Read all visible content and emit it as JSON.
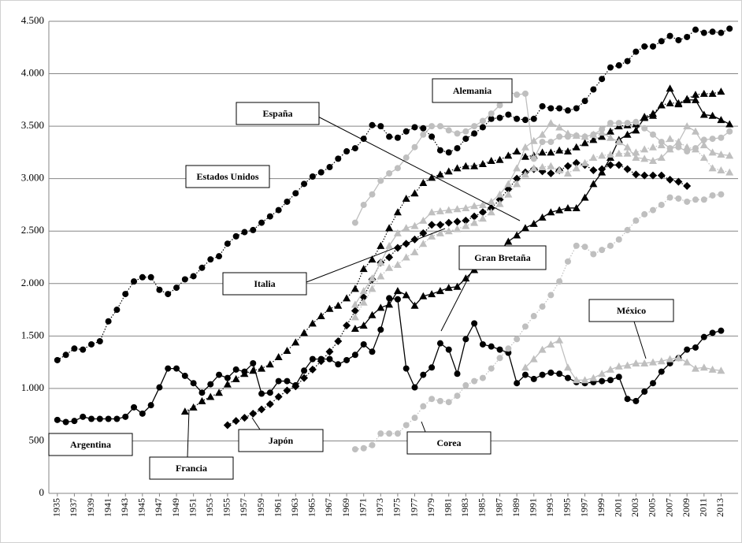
{
  "chart_data": {
    "type": "line",
    "x": [
      1935,
      1936,
      1937,
      1938,
      1939,
      1940,
      1941,
      1942,
      1943,
      1944,
      1945,
      1946,
      1947,
      1948,
      1949,
      1950,
      1951,
      1952,
      1953,
      1954,
      1955,
      1956,
      1957,
      1958,
      1959,
      1960,
      1961,
      1962,
      1963,
      1964,
      1965,
      1966,
      1967,
      1968,
      1969,
      1970,
      1971,
      1972,
      1973,
      1974,
      1975,
      1976,
      1977,
      1978,
      1979,
      1980,
      1981,
      1982,
      1983,
      1984,
      1985,
      1986,
      1987,
      1988,
      1989,
      1990,
      1991,
      1992,
      1993,
      1994,
      1995,
      1996,
      1997,
      1998,
      1999,
      2000,
      2001,
      2002,
      2003,
      2004,
      2005,
      2006,
      2007,
      2008,
      2009,
      2010,
      2011,
      2012,
      2013,
      2014
    ],
    "xlim": [
      1934,
      2015
    ],
    "xticks": [
      1935,
      1937,
      1939,
      1941,
      1943,
      1945,
      1947,
      1949,
      1951,
      1953,
      1955,
      1957,
      1959,
      1961,
      1963,
      1965,
      1967,
      1969,
      1971,
      1973,
      1975,
      1977,
      1979,
      1981,
      1983,
      1985,
      1987,
      1989,
      1991,
      1993,
      1995,
      1997,
      1999,
      2001,
      2003,
      2005,
      2007,
      2009,
      2011,
      2013
    ],
    "ylim": [
      0,
      4500
    ],
    "yticks": [
      0,
      500,
      {
        "value": 1000,
        "label": "1.000"
      },
      {
        "value": 1500,
        "label": "1.500"
      },
      {
        "value": 2000,
        "label": "2.000"
      },
      {
        "value": 2500,
        "label": "2.500"
      },
      {
        "value": 3000,
        "label": "3.000"
      },
      {
        "value": 3500,
        "label": "3.500"
      },
      {
        "value": 4000,
        "label": "4.000"
      },
      {
        "value": 4500,
        "label": "4.500"
      }
    ],
    "grid": true,
    "series": [
      {
        "name": "Estados Unidos",
        "color": "#000000",
        "marker": "circle",
        "line": "dotted",
        "values": [
          1270,
          1320,
          1380,
          1370,
          1420,
          1450,
          1640,
          1750,
          1900,
          2020,
          2060,
          2060,
          1940,
          1900,
          1960,
          2040,
          2070,
          2150,
          2230,
          2260,
          2380,
          2450,
          2490,
          2510,
          2580,
          2640,
          2700,
          2780,
          2860,
          2950,
          3020,
          3060,
          3110,
          3190,
          3260,
          3290,
          3380,
          3510,
          3500,
          3400,
          3390,
          3450,
          3490,
          3480,
          3400,
          3270,
          3250,
          3290,
          3380,
          3430,
          3490,
          3570,
          3580,
          3610,
          3570,
          3560,
          3570,
          3690,
          3670,
          3670,
          3650,
          3670,
          3740,
          3850,
          3950,
          4060,
          4080,
          4120,
          4210,
          4260,
          4260,
          4310,
          4360,
          4320,
          4350,
          4420,
          4390,
          4400,
          4390,
          4430
        ]
      },
      {
        "name": "Argentina",
        "color": "#000000",
        "marker": "circle",
        "line": "solid",
        "values": [
          700,
          680,
          690,
          730,
          710,
          710,
          710,
          710,
          730,
          820,
          760,
          840,
          1010,
          1190,
          1190,
          1120,
          1050,
          960,
          1040,
          1130,
          1100,
          1180,
          1160,
          1240,
          950,
          960,
          1070,
          1070,
          1030,
          1170,
          1280,
          1280,
          1280,
          1230,
          1270,
          1320,
          1420,
          1350,
          1560,
          1860,
          1850,
          1190,
          1010,
          1130,
          1200,
          1430,
          1370,
          1140,
          1470,
          1620,
          1420,
          1400,
          1370,
          1340,
          1050,
          1130,
          1090,
          1130,
          1150,
          1140,
          1100,
          1060,
          1050,
          1060,
          1070,
          1080,
          1110,
          900,
          880,
          970,
          1050,
          1160,
          1240,
          1290,
          1370,
          1390,
          1490,
          1530,
          1550,
          null
        ]
      },
      {
        "name": "Francia",
        "color": "#000000",
        "marker": "triangle",
        "line": "dotted",
        "values": [
          null,
          null,
          null,
          null,
          null,
          null,
          null,
          null,
          null,
          null,
          null,
          null,
          null,
          null,
          null,
          780,
          820,
          880,
          920,
          960,
          1040,
          1090,
          1140,
          1170,
          1190,
          1230,
          1300,
          1360,
          1440,
          1530,
          1620,
          1690,
          1760,
          1790,
          1860,
          1950,
          2140,
          2230,
          2360,
          2530,
          2680,
          2810,
          2860,
          2960,
          3010,
          3040,
          3070,
          3100,
          3120,
          3120,
          3140,
          3170,
          3180,
          3220,
          3260,
          3210,
          3220,
          3250,
          3250,
          3270,
          3260,
          3300,
          3340,
          3370,
          3400,
          3450,
          3500,
          3510,
          3520,
          3590,
          3620,
          3700,
          3720,
          3720,
          3760,
          3800,
          3810,
          3810,
          3830,
          null
        ]
      },
      {
        "name": "Gran Bretaña",
        "color": "#000000",
        "marker": "triangle",
        "line": "solid",
        "values": [
          null,
          null,
          null,
          null,
          null,
          null,
          null,
          null,
          null,
          null,
          null,
          null,
          null,
          null,
          null,
          null,
          null,
          null,
          null,
          null,
          null,
          null,
          null,
          null,
          null,
          null,
          null,
          null,
          null,
          null,
          null,
          null,
          null,
          null,
          null,
          1570,
          1600,
          1700,
          1770,
          1800,
          1930,
          1890,
          1790,
          1880,
          1900,
          1930,
          1960,
          1970,
          2050,
          2130,
          2200,
          2250,
          2310,
          2400,
          2460,
          2530,
          2570,
          2630,
          2680,
          2700,
          2720,
          2720,
          2820,
          2950,
          3060,
          3200,
          3370,
          3420,
          3460,
          3580,
          3600,
          3700,
          3860,
          3710,
          3750,
          3750,
          3610,
          3600,
          3560,
          3520
        ]
      },
      {
        "name": "Japón",
        "color": "#000000",
        "marker": "diamond",
        "line": "dotted",
        "values": [
          null,
          null,
          null,
          null,
          null,
          null,
          null,
          null,
          null,
          null,
          null,
          null,
          null,
          null,
          null,
          null,
          null,
          null,
          null,
          null,
          650,
          690,
          720,
          760,
          800,
          850,
          920,
          980,
          1020,
          1100,
          1180,
          1260,
          1350,
          1450,
          1600,
          1740,
          1870,
          2040,
          2200,
          2250,
          2340,
          2380,
          2420,
          2480,
          2560,
          2560,
          2580,
          2590,
          2600,
          2640,
          2680,
          2720,
          2800,
          2900,
          3000,
          3060,
          3090,
          3070,
          3050,
          3080,
          3120,
          3150,
          3130,
          3080,
          3090,
          3130,
          3130,
          3090,
          3040,
          3030,
          3030,
          3030,
          2990,
          2970,
          2930,
          null,
          null,
          null,
          null,
          null
        ]
      },
      {
        "name": "Alemania",
        "color": "#bfbfbf",
        "marker": "circle",
        "line": "solid",
        "values": [
          null,
          null,
          null,
          null,
          null,
          null,
          null,
          null,
          null,
          null,
          null,
          null,
          null,
          null,
          null,
          null,
          null,
          null,
          null,
          null,
          null,
          null,
          null,
          null,
          null,
          null,
          null,
          null,
          null,
          null,
          null,
          null,
          null,
          null,
          null,
          2580,
          2750,
          2850,
          2980,
          3050,
          3100,
          3200,
          3300,
          3420,
          3500,
          3500,
          3460,
          3430,
          3450,
          3500,
          3550,
          3620,
          3700,
          3830,
          3800,
          3810,
          3190,
          3350,
          3350,
          3400,
          3400,
          3410,
          3400,
          3420,
          3470,
          3530,
          3530,
          3530,
          3540,
          3480,
          3420,
          3350,
          3290,
          3300,
          3260,
          3290,
          3370,
          3380,
          3390,
          3450
        ]
      },
      {
        "name": "Italia",
        "color": "#bfbfbf",
        "marker": "triangle",
        "line": "solid",
        "values": [
          null,
          null,
          null,
          null,
          null,
          null,
          null,
          null,
          null,
          null,
          null,
          null,
          null,
          null,
          null,
          null,
          null,
          null,
          null,
          null,
          null,
          null,
          null,
          null,
          null,
          null,
          null,
          null,
          null,
          null,
          null,
          null,
          null,
          null,
          null,
          1800,
          1930,
          2050,
          2200,
          2360,
          2480,
          2530,
          2550,
          2600,
          2680,
          2690,
          2700,
          2710,
          2720,
          2740,
          2750,
          2780,
          2850,
          2950,
          3100,
          3300,
          3360,
          3420,
          3530,
          3490,
          3430,
          3410,
          3400,
          3420,
          3440,
          3390,
          3350,
          3300,
          3200,
          3190,
          3170,
          3200,
          3280,
          3350,
          3500,
          3450,
          3320,
          3250,
          3230,
          3220
        ]
      },
      {
        "name": "España",
        "color": "#bfbfbf",
        "marker": "triangle",
        "line": "dotted",
        "values": [
          null,
          null,
          null,
          null,
          null,
          null,
          null,
          null,
          null,
          null,
          null,
          null,
          null,
          null,
          null,
          null,
          null,
          null,
          null,
          null,
          null,
          null,
          null,
          null,
          null,
          null,
          null,
          null,
          null,
          null,
          null,
          null,
          null,
          null,
          null,
          1680,
          1820,
          1950,
          2070,
          2150,
          2180,
          2250,
          2300,
          2380,
          2450,
          2480,
          2500,
          2520,
          2550,
          2580,
          2620,
          2680,
          2760,
          2850,
          2950,
          3040,
          3100,
          3110,
          3120,
          3080,
          3050,
          3100,
          3150,
          3200,
          3220,
          3230,
          3240,
          3240,
          3250,
          3280,
          3300,
          3320,
          3380,
          3350,
          3300,
          3280,
          3200,
          3100,
          3080,
          3060
        ]
      },
      {
        "name": "Corea",
        "color": "#bfbfbf",
        "marker": "circle",
        "line": "dotted",
        "values": [
          null,
          null,
          null,
          null,
          null,
          null,
          null,
          null,
          null,
          null,
          null,
          null,
          null,
          null,
          null,
          null,
          null,
          null,
          null,
          null,
          null,
          null,
          null,
          null,
          null,
          null,
          null,
          null,
          null,
          null,
          null,
          null,
          null,
          null,
          null,
          420,
          430,
          460,
          570,
          570,
          570,
          650,
          720,
          830,
          900,
          880,
          870,
          930,
          1030,
          1070,
          1100,
          1190,
          1290,
          1380,
          1470,
          1590,
          1690,
          1780,
          1890,
          2020,
          2210,
          2360,
          2350,
          2280,
          2320,
          2360,
          2420,
          2510,
          2600,
          2660,
          2700,
          2750,
          2820,
          2810,
          2780,
          2800,
          2800,
          2840,
          2850,
          null
        ]
      },
      {
        "name": "México",
        "color": "#bfbfbf",
        "marker": "triangle",
        "line": "solid",
        "values": [
          null,
          null,
          null,
          null,
          null,
          null,
          null,
          null,
          null,
          null,
          null,
          null,
          null,
          null,
          null,
          null,
          null,
          null,
          null,
          null,
          null,
          null,
          null,
          null,
          null,
          null,
          null,
          null,
          null,
          null,
          null,
          null,
          null,
          null,
          null,
          null,
          null,
          null,
          null,
          null,
          null,
          null,
          null,
          null,
          null,
          null,
          null,
          null,
          null,
          null,
          null,
          null,
          null,
          null,
          null,
          1200,
          1280,
          1370,
          1420,
          1460,
          1200,
          1080,
          1080,
          1100,
          1140,
          1180,
          1210,
          1220,
          1240,
          1240,
          1250,
          1260,
          1280,
          1290,
          1250,
          1190,
          1200,
          1180,
          1170,
          null
        ]
      }
    ]
  }
}
